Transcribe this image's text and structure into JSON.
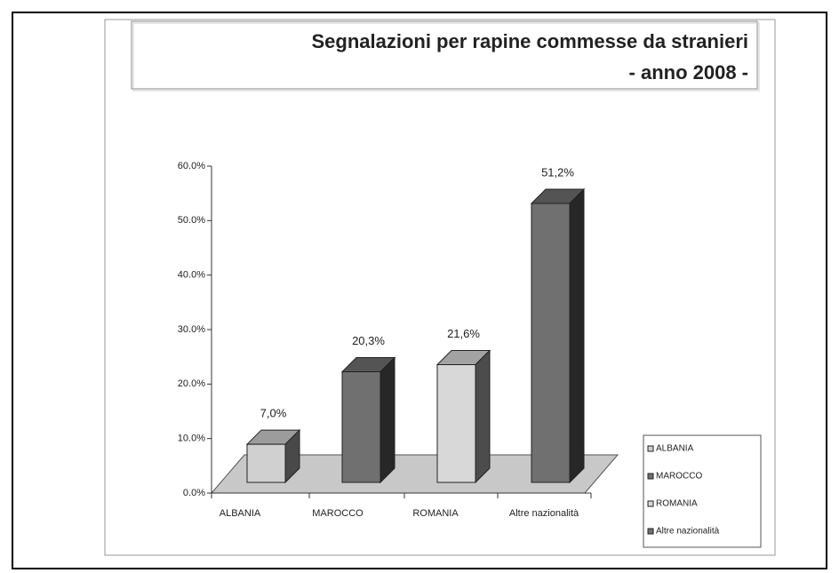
{
  "chart_data": {
    "type": "bar3d",
    "title": "Segnalazioni per rapine commesse da stranieri",
    "subtitle": "- anno 2008 -",
    "categories": [
      "ALBANIA",
      "MAROCCO",
      "ROMANIA",
      "Altre nazionalità"
    ],
    "values": [
      7.0,
      20.3,
      21.6,
      51.2
    ],
    "value_labels": [
      "7,0%",
      "20,3%",
      "21,6%",
      "51,2%"
    ],
    "colors": [
      "#d0d0d0",
      "#707070",
      "#d8d8d8",
      "#707070"
    ],
    "ylim": [
      0,
      60
    ],
    "yticks": [
      {
        "value": 0,
        "label": "0.0%"
      },
      {
        "value": 10,
        "label": "10.0%"
      },
      {
        "value": 20,
        "label": "20.0%"
      },
      {
        "value": 30,
        "label": "30.0%"
      },
      {
        "value": 40,
        "label": "40.0%"
      },
      {
        "value": 50,
        "label": "50.0%"
      },
      {
        "value": 60,
        "label": "60.0%"
      }
    ],
    "legend": "right"
  }
}
